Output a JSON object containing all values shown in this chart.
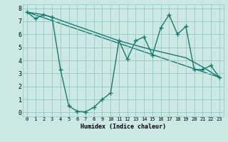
{
  "xlabel": "Humidex (Indice chaleur)",
  "bg_color": "#cce8e4",
  "grid_color": "#9fccc8",
  "line_color": "#1a7a6e",
  "line_width": 1.0,
  "marker": "+",
  "marker_size": 4,
  "xlim": [
    -0.5,
    23.5
  ],
  "ylim": [
    -0.3,
    8.3
  ],
  "xticks": [
    0,
    1,
    2,
    3,
    4,
    5,
    6,
    7,
    8,
    9,
    10,
    11,
    12,
    13,
    14,
    15,
    16,
    17,
    18,
    19,
    20,
    21,
    22,
    23
  ],
  "yticks": [
    0,
    1,
    2,
    3,
    4,
    5,
    6,
    7,
    8
  ],
  "series": [
    [
      0,
      7.7
    ],
    [
      1,
      7.2
    ],
    [
      2,
      7.5
    ],
    [
      3,
      7.3
    ],
    [
      4,
      3.3
    ],
    [
      5,
      0.5
    ],
    [
      6,
      0.1
    ],
    [
      7,
      0.05
    ],
    [
      8,
      0.4
    ],
    [
      9,
      1.0
    ],
    [
      10,
      1.5
    ],
    [
      11,
      5.5
    ],
    [
      12,
      4.1
    ],
    [
      13,
      5.5
    ],
    [
      14,
      5.8
    ],
    [
      15,
      4.4
    ],
    [
      16,
      6.5
    ],
    [
      17,
      7.5
    ],
    [
      18,
      6.0
    ],
    [
      19,
      6.6
    ],
    [
      20,
      3.3
    ],
    [
      21,
      3.3
    ],
    [
      22,
      3.6
    ],
    [
      23,
      2.7
    ]
  ],
  "line_straight": [
    [
      0,
      7.7
    ],
    [
      23,
      2.7
    ]
  ],
  "line_smooth": [
    [
      0,
      7.7
    ],
    [
      2,
      7.5
    ],
    [
      3,
      7.3
    ],
    [
      11,
      5.5
    ],
    [
      15,
      4.8
    ],
    [
      19,
      4.2
    ],
    [
      21,
      3.5
    ],
    [
      23,
      2.7
    ]
  ]
}
